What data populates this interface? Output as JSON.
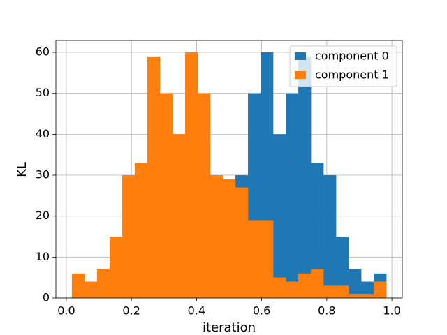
{
  "chart_data": {
    "type": "histogram",
    "xlabel": "iteration",
    "ylabel": "KL",
    "bins": [
      0.017,
      0.0556,
      0.0943,
      0.1329,
      0.1716,
      0.2102,
      0.2488,
      0.2875,
      0.3261,
      0.3648,
      0.4034,
      0.442,
      0.4807,
      0.5193,
      0.558,
      0.5966,
      0.6352,
      0.6739,
      0.7125,
      0.7512,
      0.7898,
      0.8284,
      0.8671,
      0.9057,
      0.9444,
      0.983
    ],
    "series": [
      {
        "name": "component 0",
        "color": "#1f77b4",
        "values": [
          0,
          0,
          0,
          0,
          0,
          0,
          0,
          0,
          0,
          0,
          0,
          2,
          10,
          30,
          50,
          60,
          40,
          50,
          59,
          33,
          30,
          15,
          7,
          4,
          6
        ]
      },
      {
        "name": "component 1",
        "color": "#ff7f0e",
        "values": [
          6,
          4,
          7,
          15,
          30,
          33,
          59,
          50,
          40,
          60,
          50,
          30,
          29,
          27,
          19,
          19,
          5,
          4,
          6,
          7,
          3,
          3,
          1,
          1,
          4
        ]
      }
    ],
    "xlim": [
      -0.032,
      1.032
    ],
    "ylim": [
      0,
      62.9
    ],
    "xticks": [
      {
        "value": 0,
        "label": "0.0"
      },
      {
        "value": 0.2,
        "label": "0.2"
      },
      {
        "value": 0.4,
        "label": "0.4"
      },
      {
        "value": 0.6,
        "label": "0.6"
      },
      {
        "value": 0.8,
        "label": "0.8"
      },
      {
        "value": 1,
        "label": "1.0"
      }
    ],
    "yticks": [
      0,
      10,
      20,
      30,
      40,
      50,
      60
    ],
    "grid": true,
    "legend": "upper-right"
  }
}
